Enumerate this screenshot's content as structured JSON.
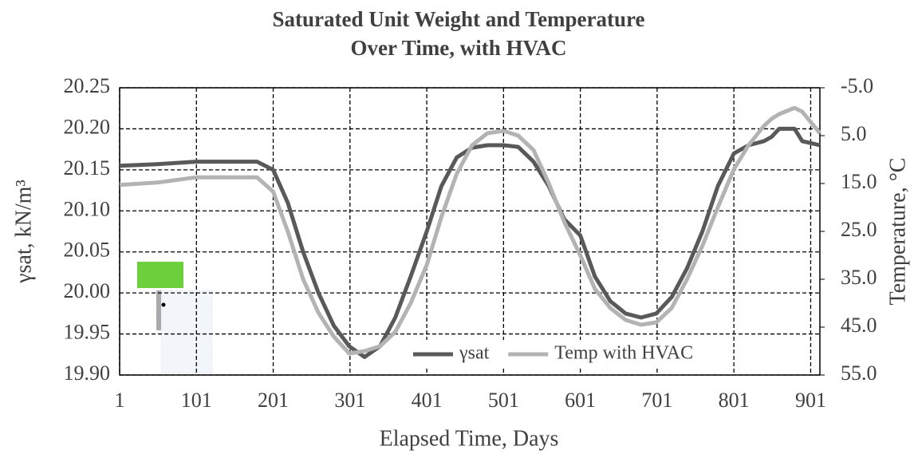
{
  "chart_data": {
    "type": "line",
    "title": [
      "Saturated Unit Weight and Temperature",
      "Over Time, with HVAC"
    ],
    "xlabel": "Elapsed Time, Days",
    "ylabel": "γsat, kN/m³",
    "y2label": "Temperature, °C",
    "x": [
      1,
      50,
      101,
      180,
      201,
      220,
      240,
      260,
      280,
      300,
      320,
      340,
      360,
      380,
      401,
      420,
      440,
      460,
      480,
      501,
      520,
      540,
      560,
      580,
      601,
      620,
      640,
      660,
      680,
      700,
      720,
      740,
      760,
      780,
      801,
      820,
      840,
      850,
      860,
      880,
      890,
      913
    ],
    "series": [
      {
        "name": "γsat",
        "color": "#595959",
        "axis": "y",
        "values": [
          20.155,
          20.157,
          20.16,
          20.16,
          20.15,
          20.11,
          20.05,
          20.0,
          19.96,
          19.935,
          19.922,
          19.935,
          19.97,
          20.02,
          20.075,
          20.13,
          20.165,
          20.177,
          20.18,
          20.18,
          20.178,
          20.16,
          20.13,
          20.09,
          20.07,
          20.02,
          19.99,
          19.975,
          19.97,
          19.975,
          19.995,
          20.03,
          20.075,
          20.13,
          20.17,
          20.18,
          20.185,
          20.19,
          20.2,
          20.2,
          20.185,
          20.18
        ]
      },
      {
        "name": "Temp with HVAC",
        "color": "#b3b3b3",
        "axis": "y2",
        "values": [
          15.3,
          14.8,
          13.7,
          13.7,
          16.7,
          25,
          35,
          42,
          47,
          50.5,
          50,
          49,
          46,
          40,
          32,
          22,
          13,
          7,
          4.5,
          4,
          5,
          8,
          15,
          23,
          30,
          37,
          41,
          43.5,
          44.5,
          44,
          41,
          35,
          28,
          20,
          12,
          7,
          3,
          1.5,
          0.5,
          -0.8,
          0,
          4.5
        ]
      }
    ],
    "xlim": [
      1,
      913
    ],
    "xticks": [
      1,
      101,
      201,
      301,
      401,
      501,
      601,
      701,
      801,
      901
    ],
    "ylim": [
      19.9,
      20.25
    ],
    "yticks": [
      {
        "value": 19.9,
        "label": "19.90"
      },
      19.95,
      {
        "value": 20.0,
        "label": "20.00"
      },
      20.05,
      {
        "value": 20.1,
        "label": "20.10"
      },
      20.15,
      {
        "value": 20.2,
        "label": "20.20"
      },
      20.25
    ],
    "y2lim": [
      -5,
      55
    ],
    "y2_reversed": true,
    "y2ticks": [
      {
        "value": -5,
        "label": "-5.0"
      },
      {
        "value": 5,
        "label": "5.0"
      },
      {
        "value": 15,
        "label": "15.0"
      },
      {
        "value": 25,
        "label": "25.0"
      },
      {
        "value": 35,
        "label": "35.0"
      },
      {
        "value": 45,
        "label": "45.0"
      },
      {
        "value": 55,
        "label": "55.0"
      }
    ],
    "grid": true,
    "legend": "bottom-right"
  }
}
